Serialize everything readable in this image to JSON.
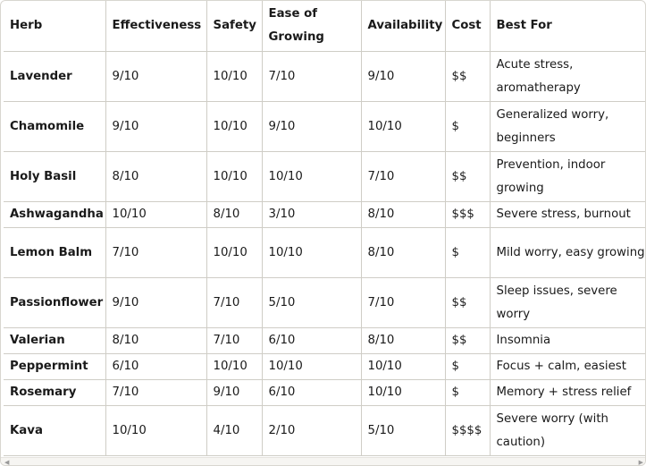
{
  "table": {
    "headers": [
      "Herb",
      "Effectiveness",
      "Safety",
      "Ease of Growing",
      "Availability",
      "Cost",
      "Best For"
    ],
    "rows": [
      [
        "Lavender",
        "9/10",
        "10/10",
        "7/10",
        "9/10",
        "$$",
        "Acute stress, aromatherapy"
      ],
      [
        "Chamomile",
        "9/10",
        "10/10",
        "9/10",
        "10/10",
        "$",
        "Generalized worry, beginners"
      ],
      [
        "Holy Basil",
        "8/10",
        "10/10",
        "10/10",
        "7/10",
        "$$",
        "Prevention, indoor growing"
      ],
      [
        "Ashwagandha",
        "10/10",
        "8/10",
        "3/10",
        "8/10",
        "$$$",
        "Severe stress, burnout"
      ],
      [
        "Lemon Balm",
        "7/10",
        "10/10",
        "10/10",
        "8/10",
        "$",
        "Mild worry, easy growing"
      ],
      [
        "Passionflower",
        "9/10",
        "7/10",
        "5/10",
        "7/10",
        "$$",
        "Sleep issues, severe worry"
      ],
      [
        "Valerian",
        "8/10",
        "7/10",
        "6/10",
        "8/10",
        "$$",
        "Insomnia"
      ],
      [
        "Peppermint",
        "6/10",
        "10/10",
        "10/10",
        "10/10",
        "$",
        "Focus + calm, easiest"
      ],
      [
        "Rosemary",
        "7/10",
        "9/10",
        "6/10",
        "10/10",
        "$",
        "Memory + stress relief"
      ],
      [
        "Kava",
        "10/10",
        "4/10",
        "2/10",
        "5/10",
        "$$$$",
        "Severe worry (with caution)"
      ]
    ]
  },
  "scrollbar": {
    "left_arrow": "◀",
    "right_arrow": "▶"
  }
}
